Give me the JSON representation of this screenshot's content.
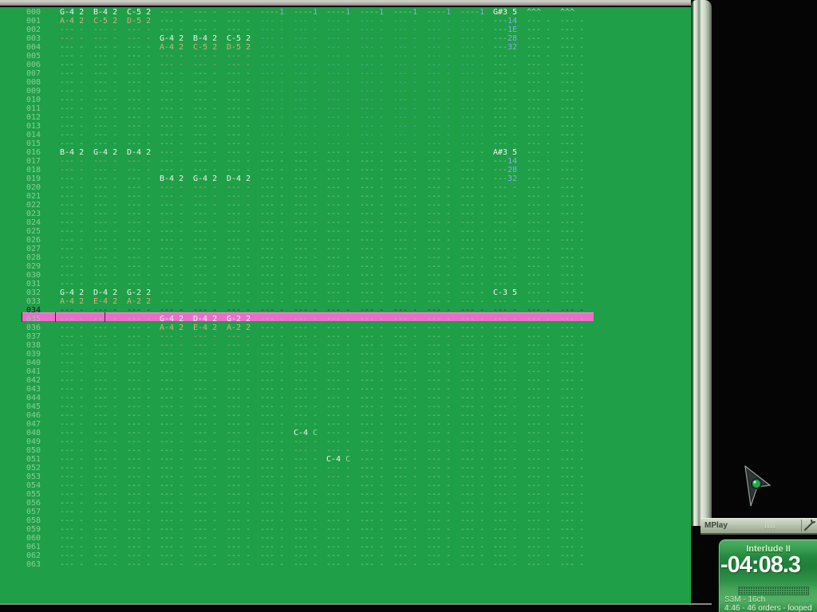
{
  "colors": {
    "bg_green": "#1f9f47",
    "highlight_pink": "#eb6dca",
    "note_white": "#f3f3ee",
    "note_tan": "#d9af80",
    "value_blue": "#90a8ee",
    "dash_green": "#96dca5",
    "player_green_dark": "#1f7f39",
    "titlebar_sage": "#b9c3ae"
  },
  "titlebar": {
    "title": "MPlay",
    "grip": "||||"
  },
  "player": {
    "song_title": "Interlude II",
    "time": "-04:08.3",
    "format_line": "S3M - 16ch",
    "info_line": "4:46 - 46 orders - looped"
  },
  "tracker": {
    "row_count": 64,
    "channel_count": 16,
    "highlight_row": 34,
    "empty_cell": "--- -",
    "row_labels": [
      "000",
      "001",
      "002",
      "003",
      "004",
      "005",
      "006",
      "007",
      "008",
      "009",
      "010",
      "011",
      "012",
      "013",
      "014",
      "015",
      "016",
      "017",
      "018",
      "019",
      "020",
      "021",
      "022",
      "023",
      "024",
      "025",
      "026",
      "027",
      "028",
      "029",
      "030",
      "031",
      "032",
      "033",
      "034",
      "035",
      "036",
      "037",
      "038",
      "039",
      "040",
      "041",
      "042",
      "043",
      "044",
      "045",
      "046",
      "047",
      "048",
      "049",
      "050",
      "051",
      "052",
      "053",
      "054",
      "055",
      "056",
      "057",
      "058",
      "059",
      "060",
      "061",
      "062",
      "063"
    ],
    "blue_dash": {
      "r0": 1,
      "r1": 15,
      "c0": 7,
      "c1": 13
    },
    "tan_dash": [
      [
        2,
        1
      ],
      [
        2,
        2
      ],
      [
        2,
        3
      ],
      [
        3,
        1
      ],
      [
        3,
        2
      ],
      [
        3,
        3
      ],
      [
        5,
        4
      ],
      [
        5,
        5
      ],
      [
        5,
        6
      ],
      [
        6,
        4
      ],
      [
        6,
        5
      ],
      [
        6,
        6
      ],
      [
        17,
        1
      ],
      [
        17,
        2
      ],
      [
        17,
        3
      ],
      [
        18,
        1
      ],
      [
        18,
        2
      ],
      [
        18,
        3
      ],
      [
        20,
        4
      ],
      [
        20,
        5
      ],
      [
        20,
        6
      ],
      [
        21,
        4
      ],
      [
        21,
        5
      ],
      [
        21,
        6
      ],
      [
        37,
        4
      ],
      [
        37,
        5
      ],
      [
        37,
        6
      ],
      [
        38,
        4
      ],
      [
        38,
        5
      ],
      [
        38,
        6
      ],
      [
        49,
        8
      ],
      [
        50,
        8
      ],
      [
        52,
        9
      ],
      [
        53,
        9
      ]
    ],
    "notes": [
      {
        "r": 0,
        "c": 1,
        "t": "G-4 2",
        "k": "w"
      },
      {
        "r": 0,
        "c": 2,
        "t": "B-4 2",
        "k": "w"
      },
      {
        "r": 0,
        "c": 3,
        "t": "C-5 2",
        "k": "w"
      },
      {
        "r": 0,
        "c": 7,
        "t": "----1",
        "k": "fx"
      },
      {
        "r": 0,
        "c": 8,
        "t": "----1",
        "k": "fx"
      },
      {
        "r": 0,
        "c": 9,
        "t": "----1",
        "k": "fx"
      },
      {
        "r": 0,
        "c": 10,
        "t": "----1",
        "k": "fx"
      },
      {
        "r": 0,
        "c": 11,
        "t": "----1",
        "k": "fx"
      },
      {
        "r": 0,
        "c": 12,
        "t": "----1",
        "k": "fx"
      },
      {
        "r": 0,
        "c": 13,
        "t": "----1",
        "k": "fx"
      },
      {
        "r": 0,
        "c": 14,
        "t": "G#3 5",
        "k": "w"
      },
      {
        "r": 0,
        "c": 15,
        "t": "^^^",
        "k": "off"
      },
      {
        "r": 0,
        "c": 16,
        "t": "^^^",
        "k": "off"
      },
      {
        "r": 1,
        "c": 1,
        "t": "A-4 2",
        "k": "t"
      },
      {
        "r": 1,
        "c": 2,
        "t": "C-5 2",
        "k": "t"
      },
      {
        "r": 1,
        "c": 3,
        "t": "D-5 2",
        "k": "t"
      },
      {
        "r": 1,
        "c": 14,
        "t": "---14",
        "k": "b"
      },
      {
        "r": 2,
        "c": 14,
        "t": "---1E",
        "k": "b"
      },
      {
        "r": 3,
        "c": 4,
        "t": "G-4 2",
        "k": "w"
      },
      {
        "r": 3,
        "c": 5,
        "t": "B-4 2",
        "k": "w"
      },
      {
        "r": 3,
        "c": 6,
        "t": "C-5 2",
        "k": "w"
      },
      {
        "r": 3,
        "c": 14,
        "t": "---28",
        "k": "b"
      },
      {
        "r": 4,
        "c": 4,
        "t": "A-4 2",
        "k": "t"
      },
      {
        "r": 4,
        "c": 5,
        "t": "C-5 2",
        "k": "t"
      },
      {
        "r": 4,
        "c": 6,
        "t": "D-5 2",
        "k": "t"
      },
      {
        "r": 4,
        "c": 14,
        "t": "---32",
        "k": "b"
      },
      {
        "r": 16,
        "c": 1,
        "t": "B-4 2",
        "k": "w"
      },
      {
        "r": 16,
        "c": 2,
        "t": "G-4 2",
        "k": "w"
      },
      {
        "r": 16,
        "c": 3,
        "t": "D-4 2",
        "k": "w"
      },
      {
        "r": 16,
        "c": 14,
        "t": "A#3 5",
        "k": "w"
      },
      {
        "r": 17,
        "c": 14,
        "t": "---14",
        "k": "b"
      },
      {
        "r": 18,
        "c": 14,
        "t": "---28",
        "k": "b"
      },
      {
        "r": 19,
        "c": 4,
        "t": "B-4 2",
        "k": "w"
      },
      {
        "r": 19,
        "c": 5,
        "t": "G-4 2",
        "k": "w"
      },
      {
        "r": 19,
        "c": 6,
        "t": "D-4 2",
        "k": "w"
      },
      {
        "r": 19,
        "c": 14,
        "t": "---32",
        "k": "b"
      },
      {
        "r": 32,
        "c": 1,
        "t": "G-4 2",
        "k": "w"
      },
      {
        "r": 32,
        "c": 2,
        "t": "D-4 2",
        "k": "w"
      },
      {
        "r": 32,
        "c": 3,
        "t": "G-2 2",
        "k": "w"
      },
      {
        "r": 32,
        "c": 14,
        "t": "C-3 5",
        "k": "w"
      },
      {
        "r": 33,
        "c": 1,
        "t": "A-4 2",
        "k": "t"
      },
      {
        "r": 33,
        "c": 2,
        "t": "E-4 2",
        "k": "t"
      },
      {
        "r": 33,
        "c": 3,
        "t": "A-2 2",
        "k": "t"
      },
      {
        "r": 35,
        "c": 4,
        "t": "G-4 2",
        "k": "w"
      },
      {
        "r": 35,
        "c": 5,
        "t": "D-4 2",
        "k": "w"
      },
      {
        "r": 35,
        "c": 6,
        "t": "G-2 2",
        "k": "w"
      },
      {
        "r": 36,
        "c": 4,
        "t": "A-4 2",
        "k": "t"
      },
      {
        "r": 36,
        "c": 5,
        "t": "E-4 2",
        "k": "t"
      },
      {
        "r": 36,
        "c": 6,
        "t": "A-2 2",
        "k": "t"
      },
      {
        "r": 48,
        "c": 8,
        "t": "C-4 C",
        "k": "n2"
      },
      {
        "r": 51,
        "c": 9,
        "t": "C-4 C",
        "k": "n2"
      }
    ]
  }
}
